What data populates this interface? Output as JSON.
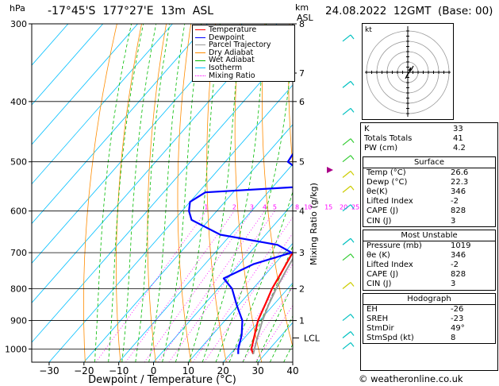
{
  "header": {
    "hpa_label": "hPa",
    "location": "-17°45'S  177°27'E  13m  ASL",
    "km_label": "km",
    "asl_label": "ASL",
    "datetime": "24.08.2022  12GMT  (Base: 00)"
  },
  "legend": [
    {
      "label": "Temperature",
      "color": "#ff0000",
      "style": "solid"
    },
    {
      "label": "Dewpoint",
      "color": "#0000ff",
      "style": "solid"
    },
    {
      "label": "Parcel Trajectory",
      "color": "#999999",
      "style": "solid"
    },
    {
      "label": "Dry Adiabat",
      "color": "#ff8c00",
      "style": "solid"
    },
    {
      "label": "Wet Adiabat",
      "color": "#00bb00",
      "style": "solid"
    },
    {
      "label": "Isotherm",
      "color": "#00bfff",
      "style": "solid"
    },
    {
      "label": "Mixing Ratio",
      "color": "#ff00ff",
      "style": "dotted"
    }
  ],
  "chart_data": {
    "type": "line",
    "xlabel": "Dewpoint / Temperature (°C)",
    "ylabel": "hPa",
    "right_axis_label": "Mixing Ratio (g/kg)",
    "x_ticks": [
      -30,
      -20,
      -10,
      0,
      10,
      20,
      30,
      40
    ],
    "x_tick_labels": [
      "−30",
      "−20",
      "−10",
      "0",
      "10",
      "20",
      "30",
      "40"
    ],
    "pressure_levels": [
      300,
      400,
      500,
      600,
      700,
      800,
      900,
      1000
    ],
    "pressure_range": [
      300,
      1050
    ],
    "x_range": [
      -35,
      40
    ],
    "km_ticks": [
      {
        "p": 300,
        "label": "8"
      },
      {
        "p": 360,
        "label": "7"
      },
      {
        "p": 400,
        "label": "6"
      },
      {
        "p": 500,
        "label": "5"
      },
      {
        "p": 600,
        "label": "4"
      },
      {
        "p": 700,
        "label": "3"
      },
      {
        "p": 800,
        "label": "2"
      },
      {
        "p": 900,
        "label": "1"
      }
    ],
    "lcl_label": "LCL",
    "lcl_pressure": 960,
    "mixing_ratio_labels": [
      "1",
      "2",
      "3",
      "4",
      "5",
      "8",
      "10",
      "15",
      "20",
      "25"
    ],
    "mixing_ratio_label_pressure": 600,
    "series": [
      {
        "name": "Temperature",
        "color": "#ff0000",
        "points": [
          [
            1019,
            26.6
          ],
          [
            1000,
            24.8
          ],
          [
            950,
            22.2
          ],
          [
            900,
            19.5
          ],
          [
            850,
            17.6
          ],
          [
            800,
            15.5
          ],
          [
            750,
            14.0
          ],
          [
            700,
            12.3
          ],
          [
            650,
            9.5
          ],
          [
            600,
            6.2
          ],
          [
            550,
            3.3
          ],
          [
            500,
            -0.8
          ],
          [
            450,
            -6.0
          ],
          [
            400,
            -11.5
          ],
          [
            350,
            -19.0
          ],
          [
            300,
            -27.5
          ]
        ]
      },
      {
        "name": "Dewpoint",
        "color": "#0000ff",
        "points": [
          [
            1019,
            22.3
          ],
          [
            1000,
            21.0
          ],
          [
            950,
            18.5
          ],
          [
            900,
            15.0
          ],
          [
            850,
            9.5
          ],
          [
            800,
            4.0
          ],
          [
            770,
            -1.0
          ],
          [
            730,
            4.0
          ],
          [
            700,
            12.0
          ],
          [
            680,
            6.0
          ],
          [
            655,
            -13.0
          ],
          [
            620,
            -25.0
          ],
          [
            600,
            -28.0
          ],
          [
            580,
            -30.0
          ],
          [
            560,
            -28.0
          ],
          [
            545,
            6.0
          ],
          [
            530,
            -2.0
          ],
          [
            500,
            -12.0
          ],
          [
            450,
            -14.0
          ],
          [
            430,
            -20.0
          ],
          [
            400,
            -18.0
          ],
          [
            350,
            -27.0
          ],
          [
            300,
            -36.0
          ]
        ]
      },
      {
        "name": "Parcel Trajectory",
        "color": "#999999",
        "points": [
          [
            1019,
            26.6
          ],
          [
            960,
            23.7
          ],
          [
            900,
            20.8
          ],
          [
            850,
            18.6
          ],
          [
            800,
            16.7
          ],
          [
            750,
            15.0
          ],
          [
            700,
            13.4
          ],
          [
            650,
            11.4
          ],
          [
            600,
            9.0
          ],
          [
            550,
            6.3
          ],
          [
            500,
            3.0
          ],
          [
            450,
            -1.0
          ],
          [
            400,
            -6.0
          ],
          [
            350,
            -12.5
          ],
          [
            300,
            -21.0
          ]
        ]
      }
    ],
    "hodograph": {
      "label": "kt",
      "rings": 4
    }
  },
  "indices": {
    "rows": [
      {
        "label": "K",
        "value": "33"
      },
      {
        "label": "Totals Totals",
        "value": "41"
      },
      {
        "label": "PW (cm)",
        "value": "4.2"
      }
    ],
    "surface": {
      "title": "Surface",
      "rows": [
        {
          "label": "Temp (°C)",
          "value": "26.6"
        },
        {
          "label": "Dewp (°C)",
          "value": "22.3"
        },
        {
          "label": "θe(K)",
          "value": "346"
        },
        {
          "label": "Lifted Index",
          "value": "-2"
        },
        {
          "label": "CAPE (J)",
          "value": "828"
        },
        {
          "label": "CIN (J)",
          "value": "3"
        }
      ]
    },
    "most_unstable": {
      "title": "Most Unstable",
      "rows": [
        {
          "label": "Pressure (mb)",
          "value": "1019"
        },
        {
          "label": "θe (K)",
          "value": "346"
        },
        {
          "label": "Lifted Index",
          "value": "-2"
        },
        {
          "label": "CAPE (J)",
          "value": "828"
        },
        {
          "label": "CIN (J)",
          "value": "3"
        }
      ]
    },
    "hodograph": {
      "title": "Hodograph",
      "rows": [
        {
          "label": "EH",
          "value": "-26"
        },
        {
          "label": "SREH",
          "value": "-23"
        },
        {
          "label": "StmDir",
          "value": "49°"
        },
        {
          "label": "StmSpd (kt)",
          "value": "8"
        }
      ]
    }
  },
  "footer": {
    "copyright": "© weatheronline.co.uk"
  }
}
